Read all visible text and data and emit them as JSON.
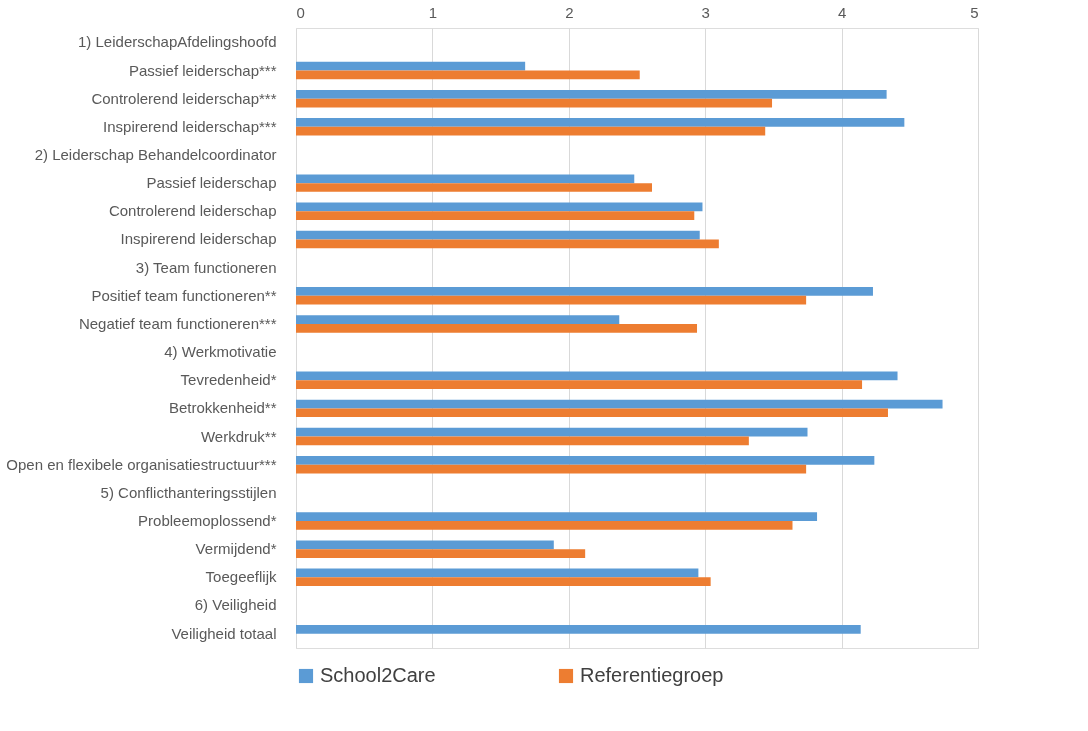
{
  "chart_data": {
    "type": "bar",
    "orientation": "horizontal",
    "categories": [
      "1) LeiderschapAfdelingshoofd",
      "Passief leiderschap***",
      "Controlerend leiderschap***",
      "Inspirerend leiderschap***",
      "2) Leiderschap Behandelcoordinator",
      "Passief leiderschap",
      "Controlerend leiderschap",
      "Inspirerend leiderschap",
      "3) Team functioneren",
      "Positief team functioneren**",
      "Negatief team functioneren***",
      "4) Werkmotivatie",
      "Tevredenheid*",
      "Betrokkenheid**",
      "Werkdruk**",
      "Open en flexibele organisatiestructuur***",
      "5) Conflicthanteringsstijlen",
      "Probleemoplossend*",
      "Vermijdend*",
      "Toegeeflijk",
      "6) Veiligheid",
      "Veiligheid totaal"
    ],
    "series": [
      {
        "name": "School2Care",
        "color": "#5b9bd5",
        "values": [
          null,
          1.68,
          4.33,
          4.46,
          null,
          2.48,
          2.98,
          2.96,
          null,
          4.23,
          2.37,
          null,
          4.41,
          4.74,
          3.75,
          4.24,
          null,
          3.82,
          1.89,
          2.95,
          null,
          4.14
        ]
      },
      {
        "name": "Referentiegroep",
        "color": "#ed7d31",
        "values": [
          null,
          2.52,
          3.49,
          3.44,
          null,
          2.61,
          2.92,
          3.1,
          null,
          3.74,
          2.94,
          null,
          4.15,
          4.34,
          3.32,
          3.74,
          null,
          3.64,
          2.12,
          3.04,
          null,
          null
        ]
      }
    ],
    "xlim": [
      0,
      5
    ],
    "xticks": [
      0,
      1,
      2,
      3,
      4,
      5
    ],
    "grid": "x",
    "legend": "bottom"
  }
}
